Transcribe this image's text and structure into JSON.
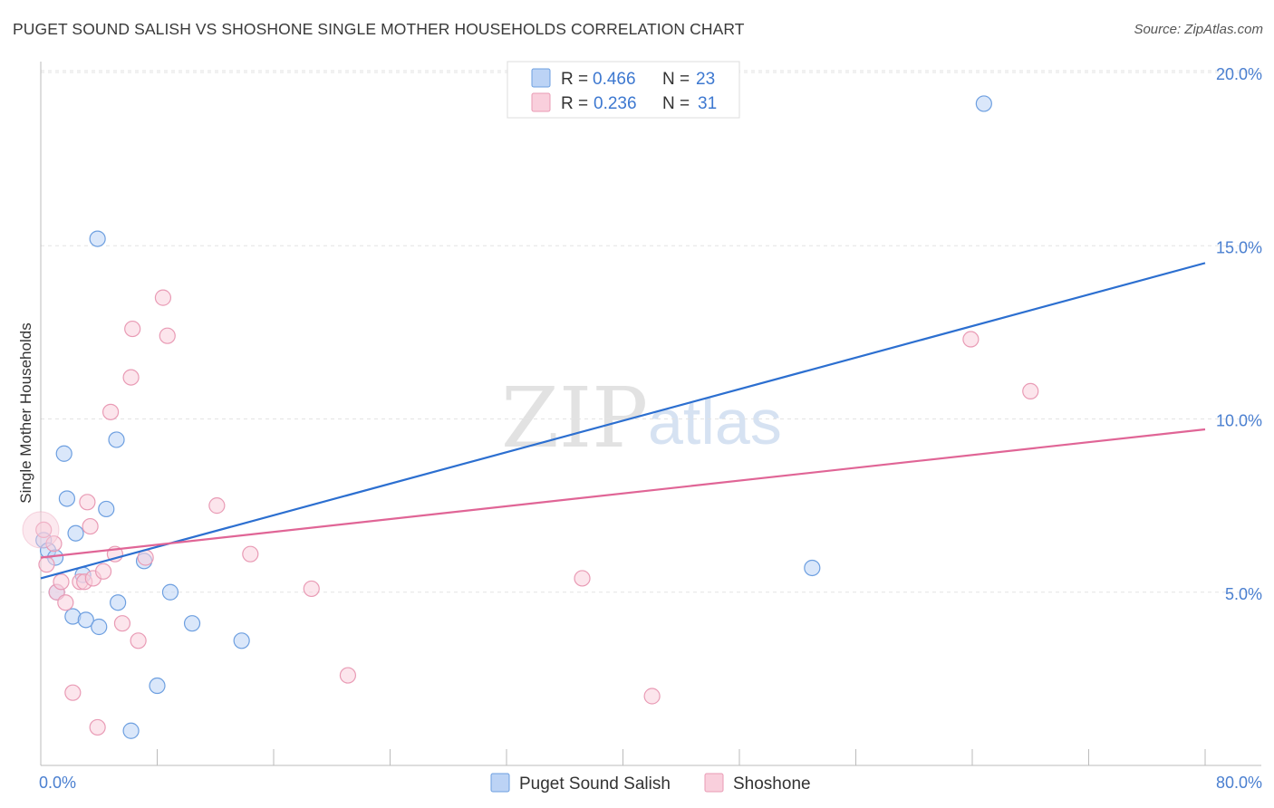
{
  "title": "PUGET SOUND SALISH VS SHOSHONE SINGLE MOTHER HOUSEHOLDS CORRELATION CHART",
  "source": "Source: ZipAtlas.com",
  "watermark": {
    "zip": "ZIP",
    "atlas": "atlas"
  },
  "stats": [
    {
      "r_label": "R =",
      "r_value": "0.466",
      "n_label": "N =",
      "n_value": "23"
    },
    {
      "r_label": "R =",
      "r_value": "0.236",
      "n_label": "N =",
      "n_value": "31"
    }
  ],
  "chart_data": {
    "type": "scatter",
    "title": "PUGET SOUND SALISH VS SHOSHONE SINGLE MOTHER HOUSEHOLDS CORRELATION CHART",
    "xlabel": "",
    "ylabel": "Single Mother Households",
    "xlim": [
      0,
      80
    ],
    "ylim": [
      0,
      20.8
    ],
    "x_tick_labels": [
      {
        "value": 0,
        "label": "0.0%"
      },
      {
        "value": 80,
        "label": "80.0%"
      }
    ],
    "y_tick_labels": [
      {
        "value": 5,
        "label": "5.0%"
      },
      {
        "value": 10,
        "label": "10.0%"
      },
      {
        "value": 15,
        "label": "15.0%"
      },
      {
        "value": 20,
        "label": "20.0%"
      }
    ],
    "grid": true,
    "legend": "bottom-center",
    "series": [
      {
        "name": "Puget Sound Salish",
        "color": "#6d9fe0",
        "fill": "#bcd3f5",
        "trend_color": "#2c6fd0",
        "trend": {
          "x0": 0,
          "y0": 5.4,
          "x1": 80,
          "y1": 14.5
        },
        "points": [
          [
            0.2,
            6.5
          ],
          [
            0.5,
            6.2
          ],
          [
            1.0,
            6.0
          ],
          [
            1.1,
            5.0
          ],
          [
            1.6,
            9.0
          ],
          [
            1.8,
            7.7
          ],
          [
            2.2,
            4.3
          ],
          [
            2.4,
            6.7
          ],
          [
            2.9,
            5.5
          ],
          [
            3.1,
            4.2
          ],
          [
            3.9,
            15.2
          ],
          [
            4.0,
            4.0
          ],
          [
            4.5,
            7.4
          ],
          [
            5.2,
            9.4
          ],
          [
            5.3,
            4.7
          ],
          [
            6.2,
            1.0
          ],
          [
            7.1,
            5.9
          ],
          [
            8.0,
            2.3
          ],
          [
            8.9,
            5.0
          ],
          [
            10.4,
            4.1
          ],
          [
            13.8,
            3.6
          ],
          [
            53.0,
            5.7
          ],
          [
            64.8,
            19.1
          ]
        ]
      },
      {
        "name": "Shoshone",
        "color": "#e99bb5",
        "fill": "#f9cfdc",
        "trend_color": "#e06596",
        "trend": {
          "x0": 0,
          "y0": 6.0,
          "x1": 80,
          "y1": 9.7
        },
        "points": [
          [
            0.2,
            6.8
          ],
          [
            0.4,
            5.8
          ],
          [
            0.9,
            6.4
          ],
          [
            1.1,
            5.0
          ],
          [
            1.4,
            5.3
          ],
          [
            1.7,
            4.7
          ],
          [
            2.2,
            2.1
          ],
          [
            2.7,
            5.3
          ],
          [
            3.0,
            5.3
          ],
          [
            3.2,
            7.6
          ],
          [
            3.4,
            6.9
          ],
          [
            3.6,
            5.4
          ],
          [
            3.9,
            1.1
          ],
          [
            4.3,
            5.6
          ],
          [
            4.8,
            10.2
          ],
          [
            5.1,
            6.1
          ],
          [
            5.6,
            4.1
          ],
          [
            6.2,
            11.2
          ],
          [
            6.3,
            12.6
          ],
          [
            6.7,
            3.6
          ],
          [
            7.2,
            6.0
          ],
          [
            8.4,
            13.5
          ],
          [
            8.7,
            12.4
          ],
          [
            12.1,
            7.5
          ],
          [
            14.4,
            6.1
          ],
          [
            18.6,
            5.1
          ],
          [
            21.1,
            2.6
          ],
          [
            37.2,
            5.4
          ],
          [
            42.0,
            2.0
          ],
          [
            63.9,
            12.3
          ],
          [
            68.0,
            10.8
          ]
        ]
      }
    ]
  }
}
